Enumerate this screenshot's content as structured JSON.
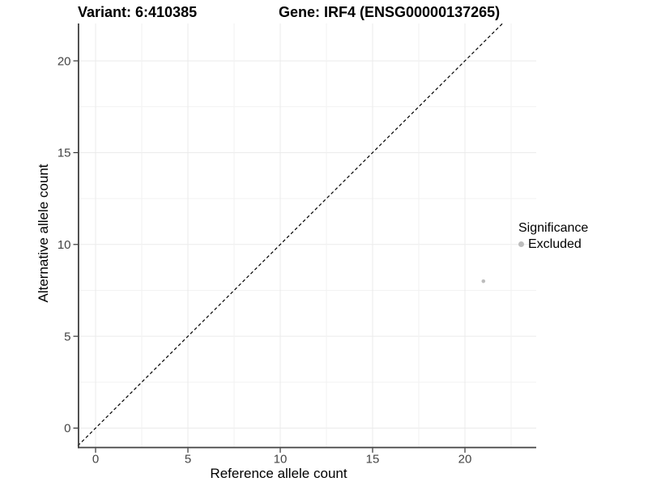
{
  "header": {
    "variant_title": "Variant: 6:410385",
    "gene_title": "Gene: IRF4 (ENSG00000137265)"
  },
  "axes": {
    "x_label": "Reference allele count",
    "y_label": "Alternative allele count"
  },
  "legend": {
    "title": "Significance",
    "items": [
      {
        "label": "Excluded",
        "color": "#bdbdbd"
      }
    ]
  },
  "colors": {
    "axis_line": "#404040",
    "tick_mark": "#333333",
    "tick_label": "#444444",
    "grid_major": "#ebebeb",
    "grid_minor": "#f2f2f2",
    "reference_line": "#000000",
    "point": "#bdbdbd"
  },
  "chart_data": {
    "type": "scatter",
    "title": "Variant: 6:410385 | Gene: IRF4 (ENSG00000137265)",
    "xlabel": "Reference allele count",
    "ylabel": "Alternative allele count",
    "xlim": [
      -1,
      23.8
    ],
    "ylim": [
      -1.1,
      22
    ],
    "x_ticks": [
      0,
      5,
      10,
      15,
      20
    ],
    "y_ticks": [
      0,
      5,
      10,
      15,
      20
    ],
    "minor_tick_step": 2.5,
    "grid": "major+minor",
    "legend_position": "right",
    "reference_line": {
      "kind": "identity",
      "equation": "y = x",
      "style": "dashed",
      "color": "#000000"
    },
    "series": [
      {
        "name": "Excluded",
        "color": "#bdbdbd",
        "marker": "circle",
        "points": [
          {
            "x": 21,
            "y": 8
          }
        ]
      }
    ]
  }
}
